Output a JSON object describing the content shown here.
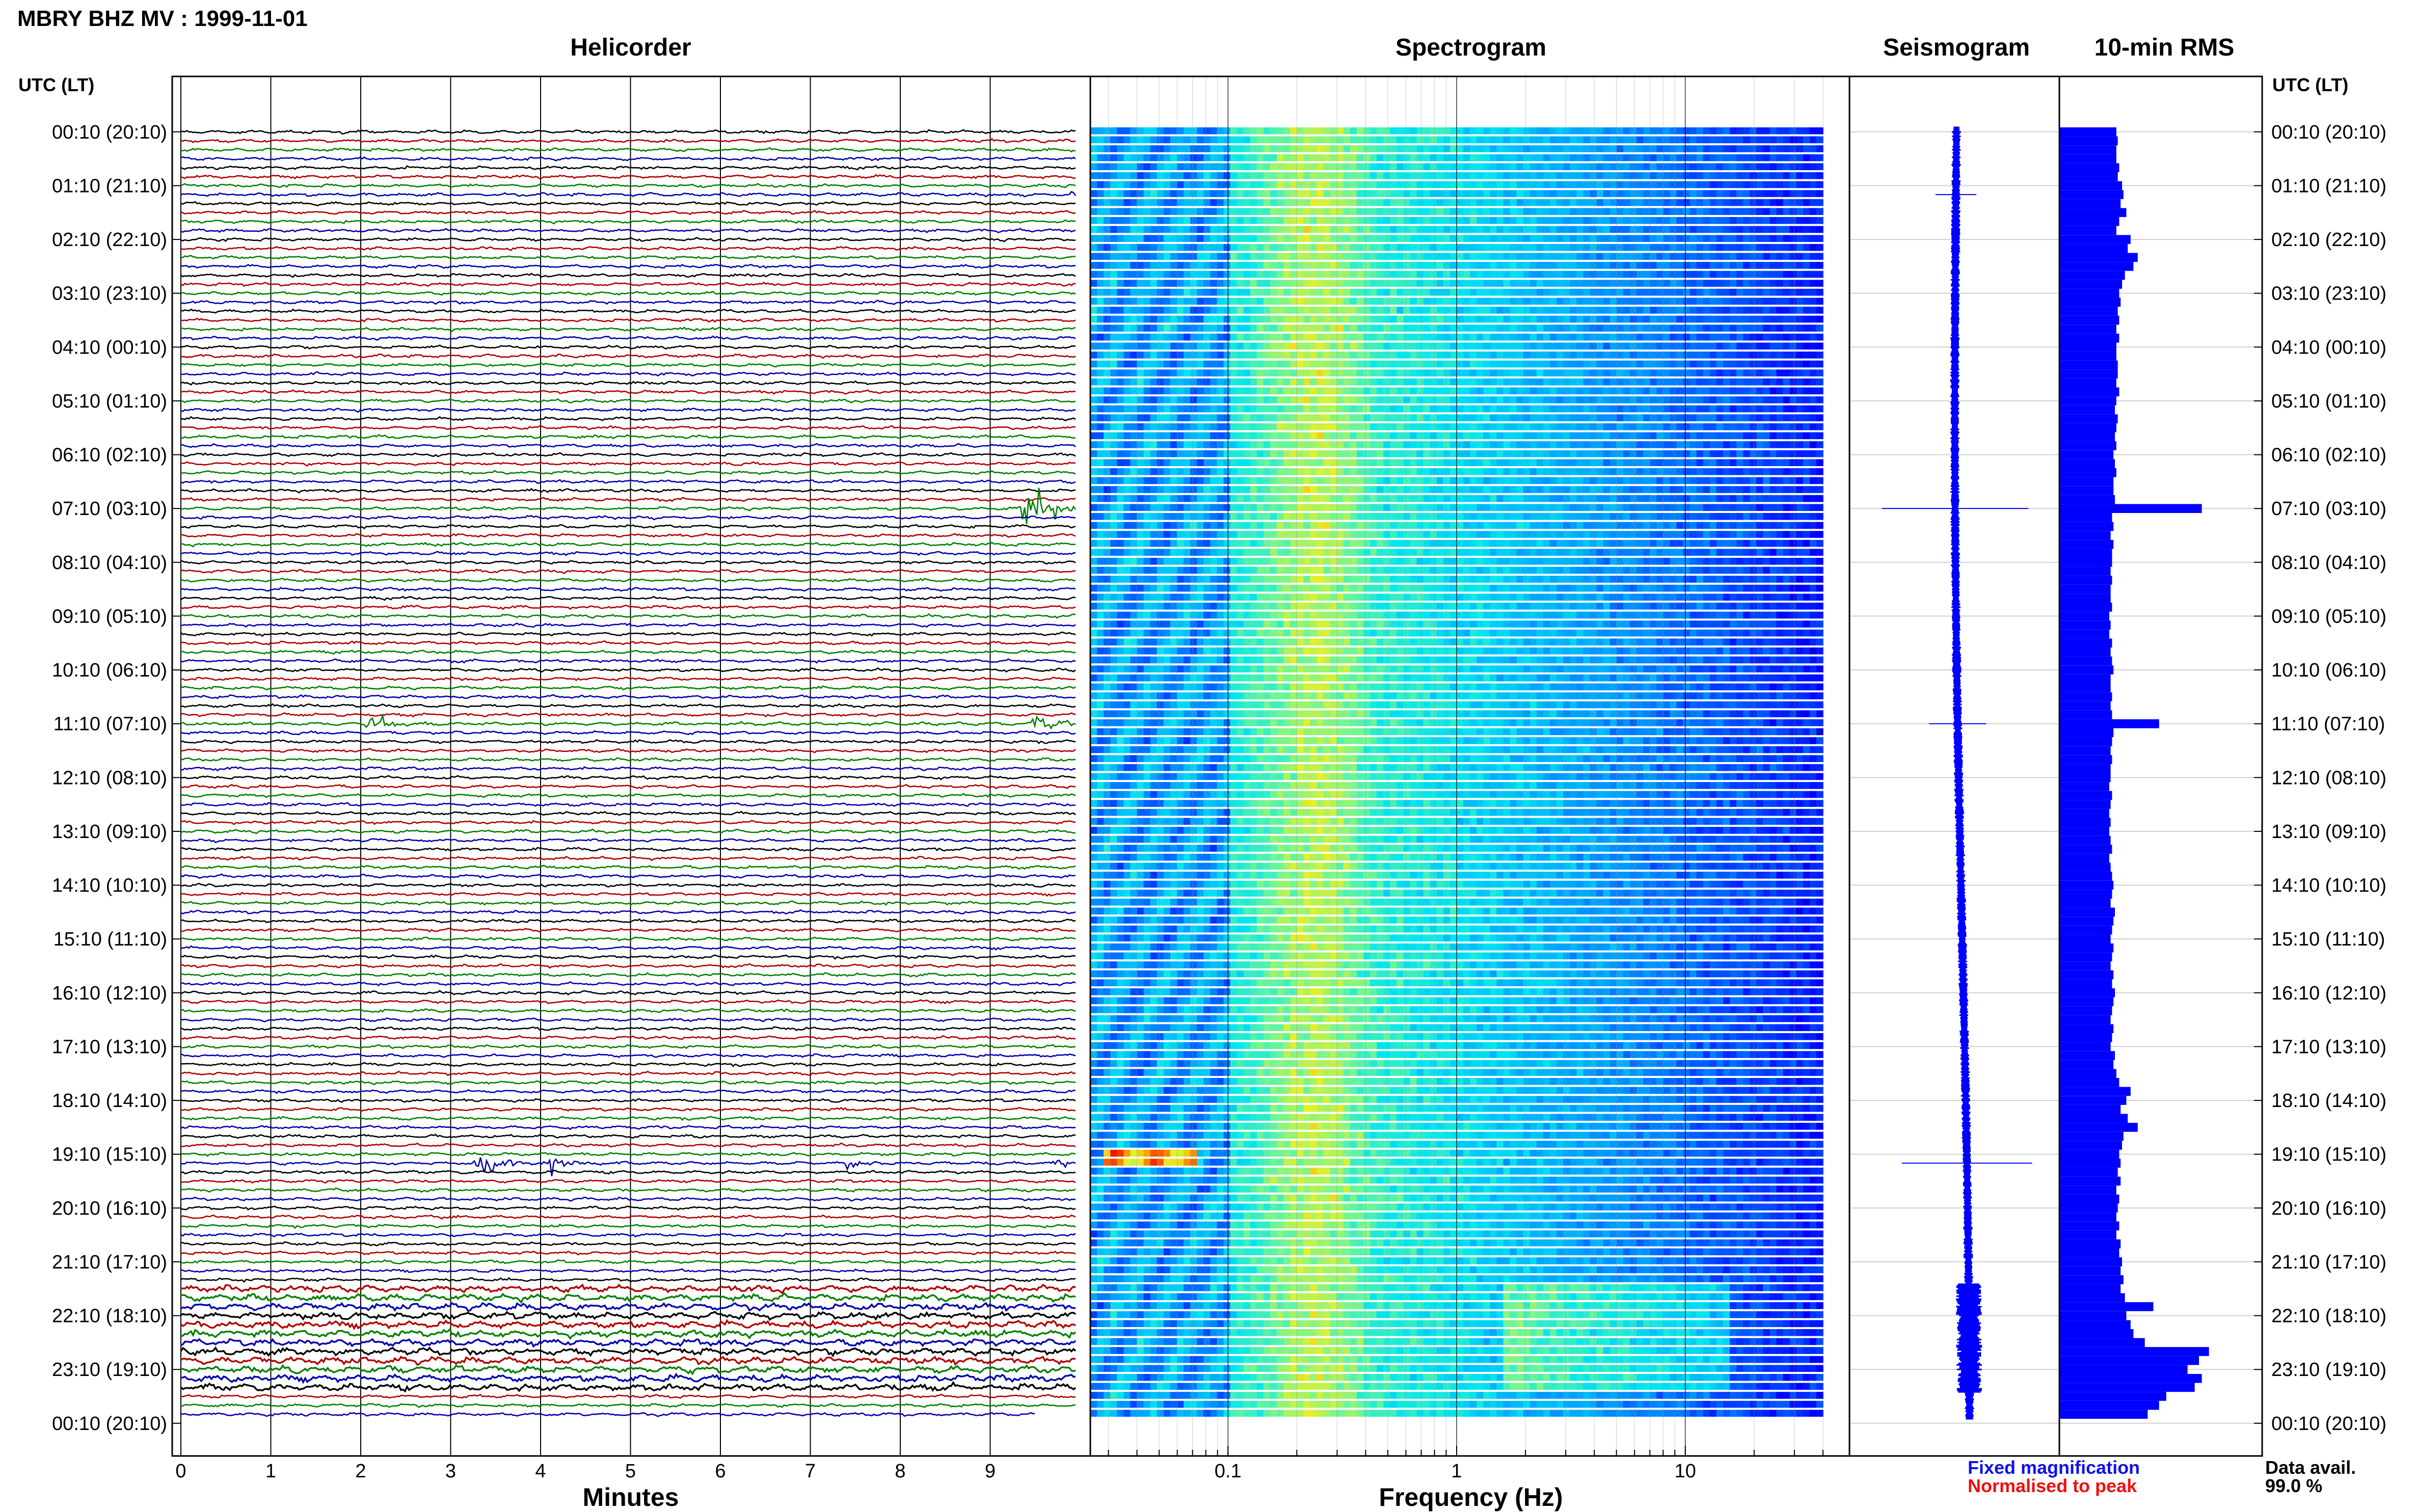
{
  "header": {
    "title": "MBRY BHZ MV : 1999-11-01"
  },
  "panels": {
    "helicorder": "Helicorder",
    "spectrogram": "Spectrogram",
    "seismogram": "Seismogram",
    "rms": "10-min RMS"
  },
  "axis_labels": {
    "time_left": "UTC (LT)",
    "time_right": "UTC (LT)",
    "minutes": "Minutes",
    "frequency": "Frequency (Hz)"
  },
  "legend": {
    "fixed": "Fixed magnification",
    "normalised": "Normalised to peak",
    "fixed_color": "#1010ee",
    "normalised_color": "#ee1010"
  },
  "data_avail": {
    "label": "Data avail.",
    "value": "99.0 %"
  },
  "colors": {
    "trace_cycle": [
      "#000000",
      "#b00000",
      "#008000",
      "#0000b0"
    ],
    "rms_bar": "#0000ff",
    "seismo": "#0000ff"
  },
  "chart_data": {
    "type": "line",
    "time_ticks": [
      "00:10 (20:10)",
      "01:10 (21:10)",
      "02:10 (22:10)",
      "03:10 (23:10)",
      "04:10 (00:10)",
      "05:10 (01:10)",
      "06:10 (02:10)",
      "07:10 (03:10)",
      "08:10 (04:10)",
      "09:10 (05:10)",
      "10:10 (06:10)",
      "11:10 (07:10)",
      "12:10 (08:10)",
      "13:10 (09:10)",
      "14:10 (10:10)",
      "15:10 (11:10)",
      "16:10 (12:10)",
      "17:10 (13:10)",
      "18:10 (14:10)",
      "19:10 (15:10)",
      "20:10 (16:10)",
      "21:10 (17:10)",
      "22:10 (18:10)",
      "23:10 (19:10)",
      "00:10 (20:10)"
    ],
    "minute_ticks": [
      "0",
      "1",
      "2",
      "3",
      "4",
      "5",
      "6",
      "7",
      "8",
      "9"
    ],
    "frequency_ticks": [
      "0.1",
      "1",
      "10"
    ],
    "frequency_range_hz": [
      0.025,
      40
    ],
    "frequency_scale": "log",
    "helicorder_rows": 144,
    "helicorder_events": [
      {
        "row": 7,
        "minute": 9.9,
        "amp": 0.5
      },
      {
        "row": 42,
        "minute": 9.4,
        "amp": 1.6
      },
      {
        "row": 66,
        "minute": 2.1,
        "amp": 0.6
      },
      {
        "row": 66,
        "minute": 9.5,
        "amp": 0.7
      },
      {
        "row": 115,
        "minute": 3.3,
        "amp": 1.0
      },
      {
        "row": 115,
        "minute": 4.1,
        "amp": 0.4
      },
      {
        "row": 115,
        "minute": 7.4,
        "amp": 0.3
      },
      {
        "row": 115,
        "minute": 9.7,
        "amp": 0.3
      }
    ],
    "helicorder_noisy_rows": [
      129,
      130,
      131,
      132,
      133,
      134,
      135,
      136,
      137,
      138,
      139,
      140
    ],
    "spectrogram_hotspot": {
      "row": 114,
      "freq_hz": 0.045
    },
    "rms_10min": [
      0.4,
      0.41,
      0.4,
      0.4,
      0.42,
      0.41,
      0.44,
      0.45,
      0.43,
      0.47,
      0.42,
      0.4,
      0.5,
      0.48,
      0.55,
      0.52,
      0.46,
      0.44,
      0.42,
      0.43,
      0.41,
      0.42,
      0.4,
      0.42,
      0.4,
      0.4,
      0.41,
      0.41,
      0.4,
      0.42,
      0.4,
      0.39,
      0.41,
      0.4,
      0.39,
      0.4,
      0.38,
      0.39,
      0.4,
      0.38,
      0.38,
      0.39,
      1.0,
      0.37,
      0.38,
      0.36,
      0.38,
      0.37,
      0.37,
      0.36,
      0.37,
      0.36,
      0.36,
      0.37,
      0.35,
      0.36,
      0.35,
      0.37,
      0.36,
      0.37,
      0.38,
      0.36,
      0.36,
      0.37,
      0.36,
      0.37,
      0.7,
      0.38,
      0.37,
      0.36,
      0.37,
      0.36,
      0.36,
      0.35,
      0.37,
      0.36,
      0.35,
      0.36,
      0.35,
      0.36,
      0.37,
      0.35,
      0.36,
      0.37,
      0.38,
      0.37,
      0.36,
      0.39,
      0.38,
      0.37,
      0.36,
      0.38,
      0.37,
      0.36,
      0.38,
      0.37,
      0.39,
      0.38,
      0.37,
      0.36,
      0.38,
      0.37,
      0.36,
      0.39,
      0.38,
      0.4,
      0.42,
      0.5,
      0.47,
      0.43,
      0.48,
      0.55,
      0.45,
      0.44,
      0.42,
      0.43,
      0.41,
      0.43,
      0.4,
      0.42,
      0.41,
      0.4,
      0.42,
      0.4,
      0.43,
      0.42,
      0.44,
      0.43,
      0.45,
      0.43,
      0.46,
      0.66,
      0.47,
      0.5,
      0.52,
      0.6,
      1.05,
      0.98,
      0.9,
      1.0,
      0.95,
      0.75,
      0.7,
      0.62
    ],
    "seismogram_spikes": [
      {
        "row": 7,
        "amp": 0.25
      },
      {
        "row": 42,
        "amp": 0.9
      },
      {
        "row": 66,
        "amp": 0.35
      },
      {
        "row": 115,
        "amp": 0.8
      }
    ]
  }
}
